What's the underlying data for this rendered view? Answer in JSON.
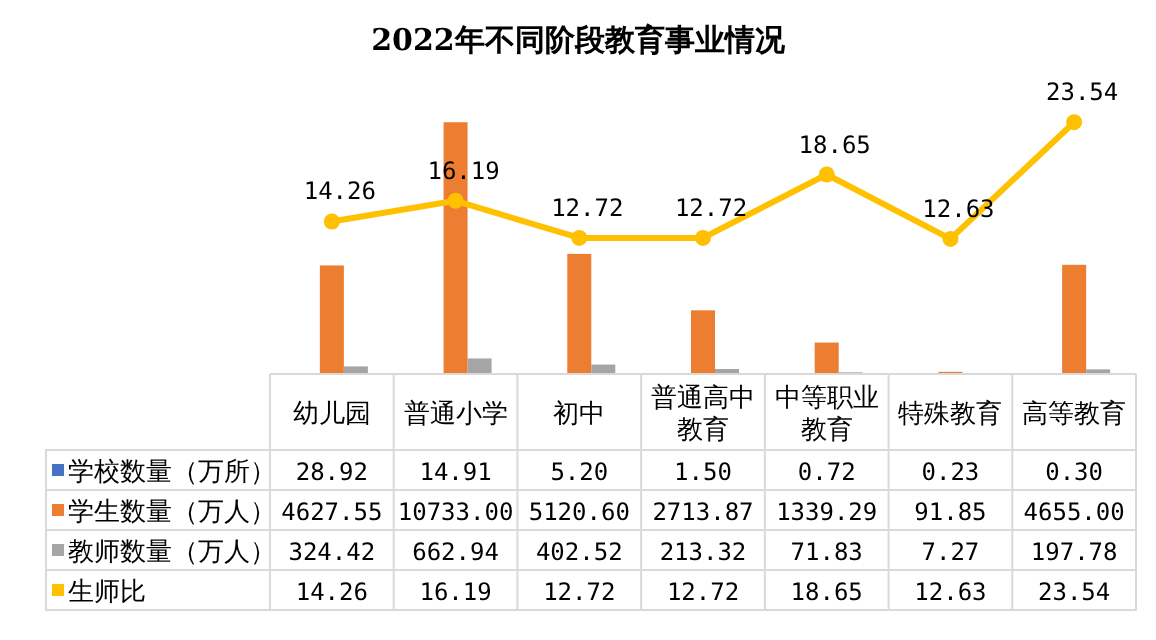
{
  "chart_data": {
    "type": "bar",
    "title": "2022年不同阶段教育事业情况",
    "categories": [
      "幼儿园",
      "普通小学",
      "初中",
      "普通高中教育",
      "中等职业教育",
      "特殊教育",
      "高等教育"
    ],
    "series": [
      {
        "name": "学校数量（万所）",
        "color": "#4472c4",
        "values": [
          28.92,
          14.91,
          5.2,
          1.5,
          0.72,
          0.23,
          0.3
        ],
        "value_labels": [
          "28.92",
          "14.91",
          "5.20",
          "1.50",
          "0.72",
          "0.23",
          "0.30"
        ]
      },
      {
        "name": "学生数量（万人）",
        "color": "#ed7d31",
        "values": [
          4627.55,
          10733,
          5120.6,
          2713.87,
          1339.29,
          91.85,
          4655
        ],
        "value_labels": [
          "4627.55",
          "10733.00",
          "5120.60",
          "2713.87",
          "1339.29",
          "91.85",
          "4655.00"
        ]
      },
      {
        "name": "教师数量（万人）",
        "color": "#a5a5a5",
        "values": [
          324.42,
          662.94,
          402.52,
          213.32,
          71.83,
          7.27,
          197.78
        ],
        "value_labels": [
          "324.42",
          "662.94",
          "402.52",
          "213.32",
          "71.83",
          "7.27",
          "197.78"
        ]
      },
      {
        "name": "生师比",
        "color": "#ffc000",
        "type": "line",
        "axis": "y2",
        "marker": "circle",
        "values": [
          14.26,
          16.19,
          12.72,
          12.72,
          18.65,
          12.63,
          23.54
        ],
        "value_labels": [
          "14.26",
          "16.19",
          "12.72",
          "12.72",
          "18.65",
          "12.63",
          "23.54"
        ]
      }
    ],
    "grid": false,
    "legend": "bottom left"
  }
}
